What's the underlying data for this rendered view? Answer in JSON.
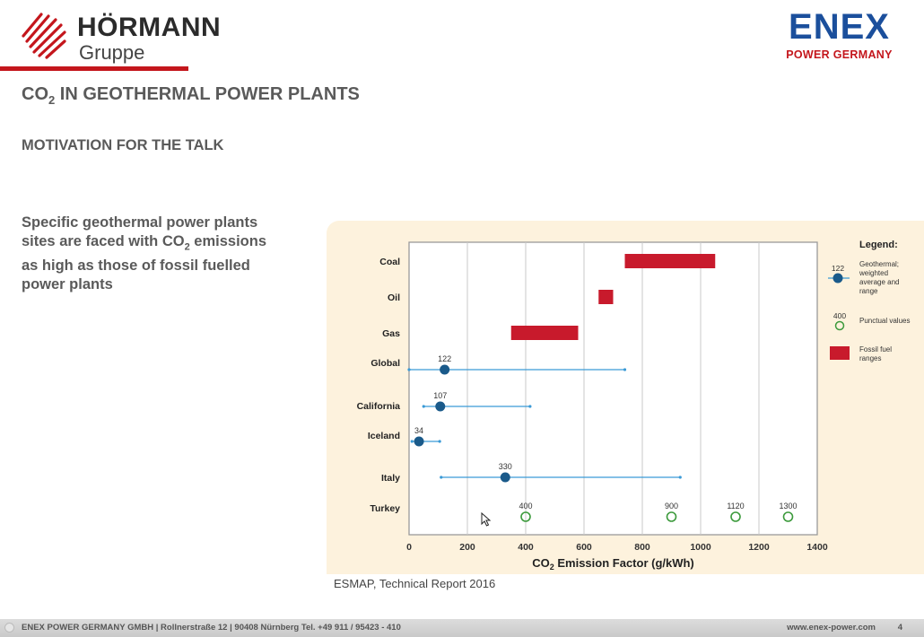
{
  "logos": {
    "left_brand": "HÖRMANN",
    "left_sub": "Gruppe",
    "right_brand": "ENEX",
    "right_sub": "POWER GERMANY"
  },
  "title": {
    "main": "CO",
    "sub": "2",
    "rest": " IN GEOTHERMAL POWER PLANTS"
  },
  "subtitle": "MOTIVATION FOR THE TALK",
  "body": {
    "line1": "Specific geothermal power plants",
    "line2a": "sites are faced with CO",
    "line2sub": "2",
    "line2b": " emissions",
    "line3": "as high as those of fossil fuelled",
    "line4": "power plants"
  },
  "source": "ESMAP, Technical Report 2016",
  "footer": {
    "left": "ENEX POWER GERMANY GMBH  |  Rollnerstraße 12 |  90408 Nürnberg Tel. +49  911 / 95423 - 410",
    "right": "www.enex-power.com",
    "page": "4"
  },
  "colors": {
    "accent_red": "#c4161c",
    "accent_blue": "#1b4f9c",
    "geo_dot": "#1a5a8a",
    "range_line": "#3a9ad6",
    "punctual": "#3c9a3c",
    "fossil": "#c81a2c",
    "panel_bg": "#fdf2dd"
  },
  "chart_data": {
    "type": "scatter",
    "xlabel_main": "CO",
    "xlabel_sub": "2",
    "xlabel_rest": " Emission Factor (g/kWh)",
    "xlim": [
      0,
      1400
    ],
    "xticks": [
      0,
      200,
      400,
      600,
      800,
      1000,
      1200,
      1400
    ],
    "grid": "vertical",
    "categories": [
      "Coal",
      "Oil",
      "Gas",
      "Global",
      "California",
      "Iceland",
      "Italy",
      "Turkey"
    ],
    "fossil_ranges": [
      {
        "category": "Coal",
        "min": 740,
        "max": 1050
      },
      {
        "category": "Oil",
        "min": 650,
        "max": 700
      },
      {
        "category": "Gas",
        "min": 350,
        "max": 580
      }
    ],
    "geothermal": [
      {
        "category": "Global",
        "value": 122,
        "min": 0,
        "max": 740,
        "label": "122"
      },
      {
        "category": "California",
        "value": 107,
        "min": 50,
        "max": 415,
        "label": "107"
      },
      {
        "category": "Iceland",
        "value": 34,
        "min": 10,
        "max": 105,
        "label": "34"
      },
      {
        "category": "Italy",
        "value": 330,
        "min": 110,
        "max": 930,
        "label": "330"
      }
    ],
    "punctual": [
      {
        "category": "Turkey",
        "value": 400,
        "label": "400"
      },
      {
        "category": "Turkey",
        "value": 900,
        "label": "900"
      },
      {
        "category": "Turkey",
        "value": 1120,
        "label": "1120"
      },
      {
        "category": "Turkey",
        "value": 1300,
        "label": "1300"
      }
    ],
    "legend": {
      "title": "Legend:",
      "geo_value": "122",
      "geo_label": [
        "Geothermal;",
        "weighted",
        "average and",
        "range"
      ],
      "punct_value": "400",
      "punct_label": "Punctual values",
      "fossil_label": [
        "Fossil fuel",
        "ranges"
      ]
    }
  }
}
